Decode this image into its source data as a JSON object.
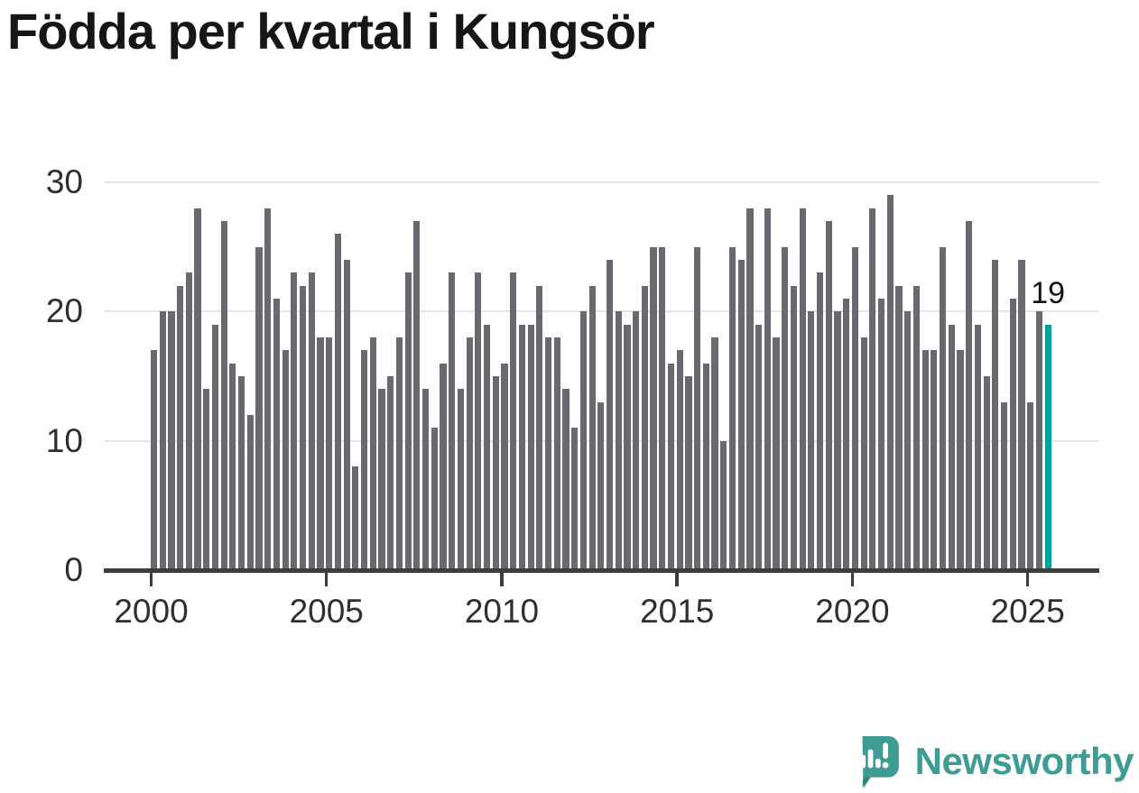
{
  "title": "Födda per kvartal i Kungsör",
  "chart_data": {
    "type": "bar",
    "title": "Födda per kvartal i Kungsör",
    "frequency": "quarterly",
    "start_period": "2000 Q1",
    "end_period": "2025 Q3",
    "x_tick_labels": [
      "2000",
      "2005",
      "2010",
      "2015",
      "2020",
      "2025"
    ],
    "y_tick_labels": [
      "0",
      "10",
      "20",
      "30"
    ],
    "y_ticks": [
      0,
      10,
      20,
      30
    ],
    "ylim": [
      0,
      31
    ],
    "grid": "horizontal",
    "legend": "none",
    "values": [
      17,
      20,
      20,
      22,
      23,
      28,
      14,
      19,
      27,
      16,
      15,
      12,
      25,
      28,
      21,
      17,
      23,
      22,
      23,
      18,
      18,
      26,
      24,
      8,
      17,
      18,
      14,
      15,
      18,
      23,
      27,
      14,
      11,
      16,
      23,
      14,
      18,
      23,
      19,
      15,
      16,
      23,
      19,
      19,
      22,
      18,
      18,
      14,
      11,
      20,
      22,
      13,
      24,
      20,
      19,
      20,
      22,
      25,
      25,
      16,
      17,
      15,
      25,
      16,
      18,
      10,
      25,
      24,
      28,
      19,
      28,
      18,
      25,
      22,
      28,
      20,
      23,
      27,
      20,
      21,
      25,
      18,
      28,
      21,
      29,
      22,
      20,
      22,
      17,
      17,
      25,
      19,
      17,
      27,
      19,
      15,
      24,
      13,
      21,
      24,
      13,
      20,
      19
    ],
    "highlight": {
      "index": 102,
      "period": "2025 Q3",
      "value": 19,
      "annotation": "19"
    },
    "colors": {
      "bar": "#69696f",
      "highlight": "#00a29b",
      "gridline": "#e4e4e4",
      "axis": "#3d3d3d",
      "tick_label": "#2f2f2f",
      "annotation": "#141414",
      "title": "#161616"
    }
  },
  "footer": {
    "brand": "Newsworthy",
    "brand_color": "#3e9c95"
  }
}
